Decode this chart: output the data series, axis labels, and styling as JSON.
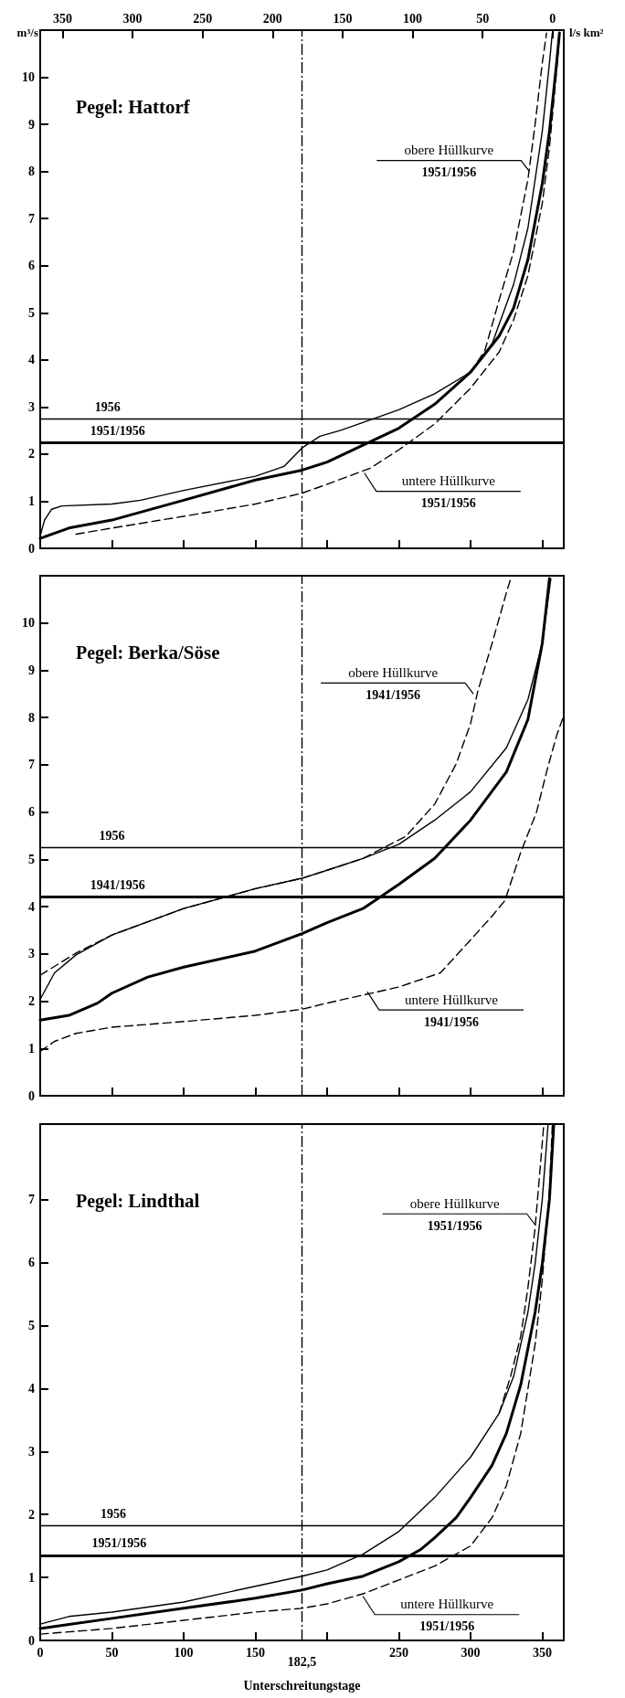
{
  "chart_data": [
    {
      "type": "line",
      "title": "Pegel: Hattorf",
      "ylabel": "m³/s",
      "x2label": "l/s km²",
      "tick_labels": "y",
      "xlim": [
        0,
        365
      ],
      "xticks": [
        50,
        100,
        150,
        200,
        250,
        300,
        350
      ],
      "x2lim": [
        366,
        -8
      ],
      "x2ticks": [
        350,
        300,
        250,
        200,
        150,
        100,
        50,
        0
      ],
      "ylim": [
        0,
        11
      ],
      "yticks": [
        0,
        1,
        2,
        3,
        4,
        5,
        6,
        7,
        8,
        9,
        10
      ],
      "series": [
        {
          "color": "#000000",
          "line_style": "solid",
          "x": [
            0,
            3,
            8,
            15,
            50,
            70,
            100,
            150,
            170,
            182.5,
            195,
            210,
            250,
            275,
            300,
            315,
            330,
            340,
            350,
            355,
            357
          ],
          "values": [
            0.26,
            0.6,
            0.83,
            0.9,
            0.94,
            1.02,
            1.23,
            1.53,
            1.74,
            2.13,
            2.38,
            2.51,
            2.94,
            3.28,
            3.74,
            4.34,
            5.6,
            6.8,
            8.85,
            10.3,
            10.94
          ]
        },
        {
          "color": "#000000",
          "line_style": "solid",
          "x": [
            0,
            20,
            50,
            100,
            150,
            182.5,
            200,
            250,
            275,
            300,
            320,
            330,
            340,
            350,
            355,
            360,
            362
          ],
          "values": [
            0.21,
            0.43,
            0.6,
            1.02,
            1.45,
            1.66,
            1.83,
            2.55,
            3.06,
            3.74,
            4.51,
            5.1,
            6.13,
            7.74,
            8.85,
            10.3,
            10.94
          ]
        },
        {
          "color": "#000000",
          "line_style": "dashed",
          "x": [
            300,
            310,
            320,
            330,
            340,
            345,
            350,
            353
          ],
          "values": [
            3.74,
            4.2,
            5.28,
            6.3,
            7.83,
            9.0,
            10.3,
            10.94
          ]
        },
        {
          "color": "#000000",
          "line_style": "dashed",
          "x": [
            25,
            50,
            100,
            150,
            182.5,
            200,
            230,
            250,
            275,
            300,
            320,
            330,
            340,
            350,
            355,
            360,
            362
          ],
          "values": [
            0.3,
            0.43,
            0.68,
            0.94,
            1.17,
            1.36,
            1.7,
            2.09,
            2.64,
            3.4,
            4.17,
            4.85,
            5.79,
            7.32,
            8.51,
            10.13,
            10.94
          ]
        }
      ],
      "ref_lines": [
        {
          "axis": "y",
          "value": 2.75,
          "color": "#000000",
          "line_style": "solid"
        },
        {
          "axis": "y",
          "value": 2.25,
          "color": "#000000",
          "line_style": "solid"
        },
        {
          "axis": "x",
          "value": 182.5,
          "color": "#000000",
          "line_style": "dashed"
        }
      ],
      "annotations": [
        {
          "text": "1956",
          "x": 47,
          "y": 2.75
        },
        {
          "text": "1951/1956",
          "x": 54,
          "y": 2.25
        },
        {
          "text": "obere Hüllkurve\n1951/1956",
          "x": 341,
          "y": 8.0
        },
        {
          "text": "untere Hüllkurve\n1951/1956",
          "x": 226,
          "y": 1.6
        }
      ]
    },
    {
      "type": "line",
      "title": "Pegel: Berka/Söse",
      "tick_labels": "y",
      "xlim": [
        0,
        365
      ],
      "xticks": [
        50,
        100,
        150,
        200,
        250,
        300,
        350
      ],
      "ylim": [
        0,
        11
      ],
      "yticks": [
        0,
        1,
        2,
        3,
        4,
        5,
        6,
        7,
        8,
        9,
        10
      ],
      "series": [
        {
          "color": "#000000",
          "line_style": "solid",
          "x": [
            0,
            10,
            25,
            50,
            100,
            150,
            182.5,
            200,
            225,
            250,
            275,
            300,
            325,
            340,
            350,
            356
          ],
          "values": [
            2.04,
            2.6,
            2.98,
            3.4,
            3.96,
            4.38,
            4.6,
            4.77,
            5.02,
            5.32,
            5.83,
            6.43,
            7.36,
            8.38,
            9.57,
            10.94
          ]
        },
        {
          "color": "#000000",
          "line_style": "solid",
          "x": [
            0,
            20,
            40,
            50,
            75,
            100,
            150,
            182.5,
            200,
            225,
            250,
            275,
            300,
            325,
            340,
            350,
            355
          ],
          "values": [
            1.6,
            1.7,
            1.96,
            2.17,
            2.51,
            2.72,
            3.06,
            3.43,
            3.66,
            3.96,
            4.47,
            5.02,
            5.83,
            6.85,
            7.96,
            9.57,
            10.94
          ]
        },
        {
          "color": "#000000",
          "line_style": "dashed",
          "x": [
            0,
            25,
            50,
            100,
            150,
            182.5,
            200,
            225,
            255,
            275,
            290,
            300,
            305,
            315,
            325,
            328
          ],
          "values": [
            2.55,
            3.02,
            3.4,
            3.96,
            4.38,
            4.6,
            4.77,
            5.02,
            5.49,
            6.17,
            7.02,
            7.87,
            8.55,
            9.57,
            10.64,
            10.94
          ]
        },
        {
          "color": "#000000",
          "line_style": "dashed",
          "x": [
            0,
            10,
            25,
            50,
            100,
            150,
            182.5,
            200,
            225,
            250,
            279,
            298,
            315,
            324,
            335,
            346,
            353,
            360,
            365
          ],
          "values": [
            0.94,
            1.15,
            1.32,
            1.45,
            1.57,
            1.7,
            1.83,
            1.96,
            2.13,
            2.3,
            2.6,
            3.23,
            3.8,
            4.13,
            5.15,
            6.0,
            6.85,
            7.62,
            8.04
          ]
        }
      ],
      "ref_lines": [
        {
          "axis": "y",
          "value": 5.25,
          "color": "#000000",
          "line_style": "solid"
        },
        {
          "axis": "y",
          "value": 4.2,
          "color": "#000000",
          "line_style": "solid"
        },
        {
          "axis": "x",
          "value": 182.5,
          "color": "#000000",
          "line_style": "dashed"
        }
      ],
      "annotations": [
        {
          "text": "1956",
          "x": 50,
          "y": 5.25
        },
        {
          "text": "1941/1956",
          "x": 54,
          "y": 4.2
        },
        {
          "text": "obere Hüllkurve\n1941/1956",
          "x": 302,
          "y": 8.5
        },
        {
          "text": "untere Hüllkurve\n1941/1956",
          "x": 228,
          "y": 2.2
        }
      ]
    },
    {
      "type": "line",
      "title": "Pegel: Lindthal",
      "xlabel": "Unterschreitungstage",
      "xlim": [
        0,
        365
      ],
      "xticks": [
        0,
        50,
        100,
        150,
        {
          "value": 200,
          "label": null
        },
        250,
        300,
        350
      ],
      "ylim": [
        0,
        8.2
      ],
      "yticks": [
        0,
        1,
        2,
        3,
        4,
        5,
        6,
        7
      ],
      "series": [
        {
          "color": "#000000",
          "line_style": "solid",
          "x": [
            0,
            20,
            50,
            100,
            150,
            182.5,
            200,
            225,
            250,
            275,
            300,
            320,
            330,
            340,
            345,
            350,
            354
          ],
          "values": [
            0.26,
            0.38,
            0.45,
            0.61,
            0.86,
            1.02,
            1.12,
            1.37,
            1.73,
            2.27,
            2.91,
            3.61,
            4.19,
            5.21,
            5.98,
            7.0,
            8.18
          ]
        },
        {
          "color": "#000000",
          "line_style": "solid",
          "x": [
            0,
            50,
            100,
            150,
            182.5,
            200,
            225,
            250,
            265,
            275,
            290,
            300,
            315,
            325,
            335,
            345,
            350,
            355,
            358
          ],
          "values": [
            0.19,
            0.35,
            0.51,
            0.67,
            0.8,
            0.9,
            1.02,
            1.25,
            1.44,
            1.63,
            1.95,
            2.27,
            2.78,
            3.29,
            4.06,
            5.21,
            5.98,
            7.0,
            8.18
          ]
        },
        {
          "color": "#000000",
          "line_style": "dashed",
          "x": [
            320,
            328,
            335,
            340,
            345,
            350,
            351
          ],
          "values": [
            3.61,
            4.2,
            4.83,
            5.6,
            6.55,
            7.9,
            8.18
          ]
        },
        {
          "color": "#000000",
          "line_style": "dashed",
          "x": [
            0,
            50,
            100,
            150,
            182.5,
            200,
            225,
            250,
            275,
            300,
            315,
            325,
            335,
            345,
            350,
            355,
            357
          ],
          "values": [
            0.1,
            0.19,
            0.32,
            0.45,
            0.51,
            0.58,
            0.74,
            0.96,
            1.18,
            1.5,
            1.95,
            2.46,
            3.29,
            4.7,
            5.72,
            7.13,
            8.18
          ]
        }
      ],
      "ref_lines": [
        {
          "axis": "y",
          "value": 1.82,
          "color": "#000000",
          "line_style": "solid"
        },
        {
          "axis": "y",
          "value": 1.35,
          "color": "#000000",
          "line_style": "solid"
        },
        {
          "axis": "x",
          "value": 182.5,
          "label": "182,5",
          "color": "#000000",
          "line_style": "dashed"
        }
      ],
      "annotations": [
        {
          "text": "1956",
          "x": 51,
          "y": 1.82
        },
        {
          "text": "1951/1956",
          "x": 55,
          "y": 1.35
        },
        {
          "text": "obere Hüllkurve\n1951/1956",
          "x": 345,
          "y": 6.6
        },
        {
          "text": "untere Hüllkurve\n1951/1956",
          "x": 225,
          "y": 0.7
        }
      ]
    }
  ]
}
